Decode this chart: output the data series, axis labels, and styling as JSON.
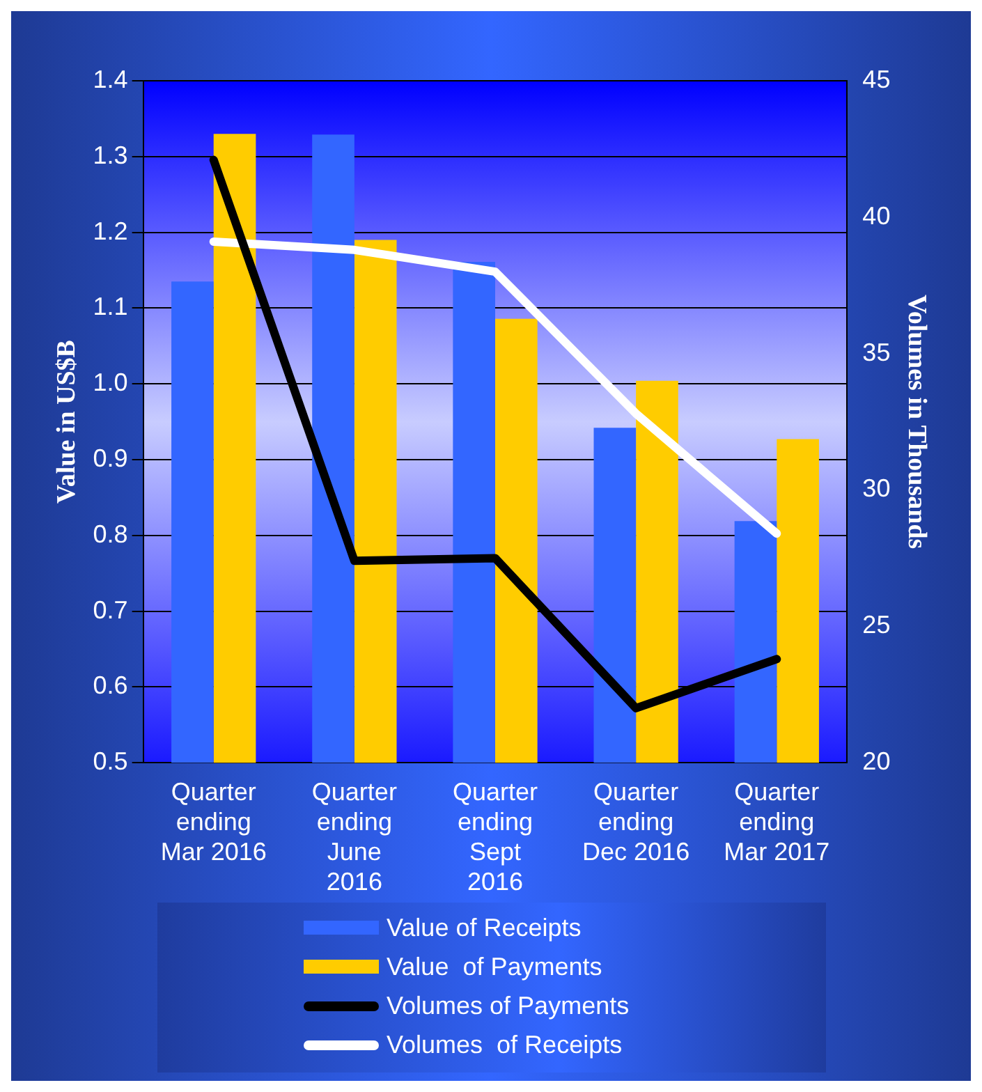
{
  "chart_data": {
    "type": "bar",
    "ylabel": "Value in US$B",
    "y2label": "Volumes in Thousands",
    "categories": [
      "Quarter ending Mar 2016",
      "Quarter ending June 2016",
      "Quarter ending Sept 2016",
      "Quarter ending Dec 2016",
      "Quarter ending Mar 2017"
    ],
    "series": [
      {
        "name": "Value of Receipts",
        "color": "#3366ff",
        "values": [
          1.135,
          1.329,
          1.161,
          0.942,
          0.819
        ]
      },
      {
        "name": "Value  of Payments",
        "color": "#ffcc00",
        "values": [
          1.33,
          1.19,
          1.086,
          1.004,
          0.927
        ]
      },
      {
        "name": "Volumes of Payments",
        "type": "line",
        "axis": "y2",
        "color": "#000000",
        "values": [
          42.1,
          27.4,
          27.5,
          22.0,
          23.8
        ]
      },
      {
        "name": "Volumes  of Receipts",
        "type": "line",
        "axis": "y2",
        "color": "#ffffff",
        "values": [
          39.1,
          38.8,
          38.0,
          32.8,
          28.4
        ]
      }
    ],
    "ylim": [
      0.5,
      1.4
    ],
    "yticks": [
      0.5,
      0.6,
      0.7,
      0.8,
      0.9,
      {
        "value": 1,
        "label": "1.0"
      },
      1.1,
      1.2,
      1.3,
      1.4
    ],
    "y2lim": [
      20,
      45
    ],
    "y2ticks": [
      20,
      25,
      30,
      35,
      40,
      45
    ],
    "grid": "y",
    "legend": "bottom"
  }
}
